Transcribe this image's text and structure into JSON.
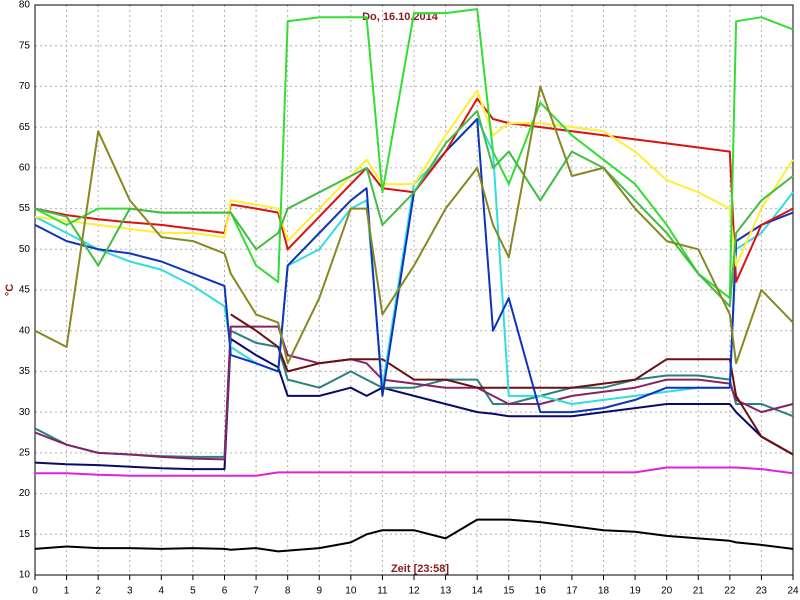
{
  "chart_data": {
    "type": "line",
    "title": "Do, 16.10.2014",
    "x_label": "Zeit [23:58]",
    "y_label": "°C",
    "xlim": [
      0,
      24
    ],
    "ylim": [
      10,
      80
    ],
    "xticks": [
      0,
      1,
      2,
      3,
      4,
      5,
      6,
      7,
      8,
      9,
      10,
      11,
      12,
      13,
      14,
      15,
      16,
      17,
      18,
      19,
      20,
      21,
      22,
      23,
      24
    ],
    "yticks": [
      10,
      15,
      20,
      25,
      30,
      35,
      40,
      45,
      50,
      55,
      60,
      65,
      70,
      75,
      80
    ],
    "grid": true,
    "x": [
      0,
      1,
      2,
      3,
      4,
      5,
      6,
      6.2,
      7,
      7.7,
      8,
      9,
      10,
      10.5,
      11,
      12,
      13,
      14,
      14.5,
      15,
      16,
      17,
      18,
      19,
      20,
      21,
      22,
      22.2,
      23,
      24
    ],
    "series": [
      {
        "color": "#000000",
        "values": [
          13.2,
          13.5,
          13.3,
          13.3,
          13.2,
          13.3,
          13.2,
          13.1,
          13.3,
          12.9,
          13,
          13.3,
          14,
          15,
          15.5,
          15.5,
          14.5,
          16.8,
          16.8,
          16.8,
          16.5,
          16,
          15.5,
          15.3,
          14.8,
          14.5,
          14.2,
          14,
          13.7,
          13.2
        ]
      },
      {
        "color": "#dd22dd",
        "values": [
          22.5,
          22.5,
          22.3,
          22.2,
          22.2,
          22.2,
          22.2,
          22.2,
          22.2,
          22.6,
          22.6,
          22.6,
          22.6,
          22.6,
          22.6,
          22.6,
          22.6,
          22.6,
          22.6,
          22.6,
          22.6,
          22.6,
          22.6,
          22.6,
          23.2,
          23.2,
          23.2,
          23.2,
          23,
          22.5
        ]
      },
      {
        "color": "#0a0a6a",
        "values": [
          23.8,
          23.6,
          23.5,
          23.3,
          23.1,
          23,
          23,
          39,
          37,
          35.5,
          32,
          32,
          33,
          32,
          33,
          32,
          31,
          30,
          29.8,
          29.5,
          29.5,
          29.5,
          30,
          30.5,
          31,
          31,
          31,
          30,
          27,
          24.8
        ]
      },
      {
        "color": "#2a8080",
        "values": [
          28,
          26,
          25,
          24.8,
          24.6,
          24.5,
          24.5,
          40,
          38.5,
          38,
          34,
          33,
          35,
          34,
          33,
          33,
          34,
          34,
          31,
          31,
          32,
          33,
          33,
          34,
          34.5,
          34.5,
          34,
          31,
          31,
          29.5
        ]
      },
      {
        "color": "#882266",
        "values": [
          27.5,
          26,
          25,
          24.8,
          24.5,
          24.3,
          24.2,
          40.5,
          40.5,
          40.5,
          37,
          36,
          36.5,
          36,
          34,
          33.5,
          33,
          33,
          32,
          31,
          31,
          32,
          32.5,
          33,
          34,
          34,
          33.5,
          31.5,
          30,
          31
        ]
      },
      {
        "color": "#6a1010",
        "values": [
          null,
          null,
          null,
          null,
          null,
          null,
          null,
          42,
          40,
          38,
          35,
          36,
          36.5,
          36.5,
          36.5,
          34,
          34,
          33,
          33,
          33,
          33,
          33,
          33.5,
          34,
          36.5,
          36.5,
          36.5,
          32,
          27,
          24.8
        ]
      },
      {
        "color": "#33dddd",
        "values": [
          54,
          52,
          50,
          48.5,
          47.5,
          45.5,
          43,
          38,
          36,
          35,
          48,
          50,
          55,
          56,
          33,
          58,
          62,
          66,
          62,
          32,
          32,
          31,
          31.5,
          32,
          32.5,
          33,
          33,
          50,
          52,
          57
        ]
      },
      {
        "color": "#1133bb",
        "values": [
          53,
          51,
          50,
          49.5,
          48.5,
          47,
          45.5,
          37,
          36,
          35,
          48,
          52,
          56,
          57.5,
          32,
          57,
          62,
          66,
          40,
          44,
          30,
          30,
          30.5,
          31.5,
          33,
          33,
          33,
          51,
          53,
          54.5
        ]
      },
      {
        "color": "#dd1111",
        "values": [
          55,
          54.2,
          53.7,
          53.3,
          53,
          52.5,
          52,
          55.5,
          55,
          54.5,
          50,
          54,
          58,
          60,
          57.5,
          57,
          62,
          68.5,
          66,
          65.5,
          65,
          64.5,
          64,
          63.5,
          63,
          62.5,
          62,
          46,
          53,
          55
        ]
      },
      {
        "color": "#ffee33",
        "values": [
          54,
          53.5,
          53,
          52.5,
          52,
          52,
          51.5,
          56,
          55.5,
          55,
          51,
          55,
          59,
          61,
          58,
          58,
          64,
          69.5,
          64,
          65.5,
          65.5,
          65,
          64.5,
          62,
          58.5,
          57,
          55,
          48,
          55,
          61
        ]
      },
      {
        "color": "#33dd33",
        "values": [
          55,
          53,
          55,
          55,
          54.5,
          54.5,
          54.5,
          54.5,
          48,
          46,
          78,
          78.5,
          78.5,
          78.5,
          57,
          79,
          79,
          79.5,
          62,
          58,
          68,
          64,
          61,
          58,
          53,
          47,
          44,
          78,
          78.5,
          77
        ]
      },
      {
        "color": "#44bb44",
        "values": [
          55,
          54,
          48,
          55,
          54.5,
          54.5,
          54.5,
          54.5,
          50,
          52,
          55,
          57,
          59,
          60,
          53,
          57,
          63,
          67,
          60,
          62,
          56,
          62,
          60,
          56,
          52,
          47,
          43,
          52,
          56,
          59
        ]
      },
      {
        "color": "#888822",
        "values": [
          40,
          38,
          64.5,
          56,
          51.5,
          51,
          49.5,
          47,
          42,
          41,
          36,
          44,
          55,
          55,
          42,
          48,
          55,
          60,
          53,
          49,
          70,
          59,
          60,
          55,
          51,
          50,
          42,
          36,
          45,
          41
        ]
      }
    ]
  }
}
